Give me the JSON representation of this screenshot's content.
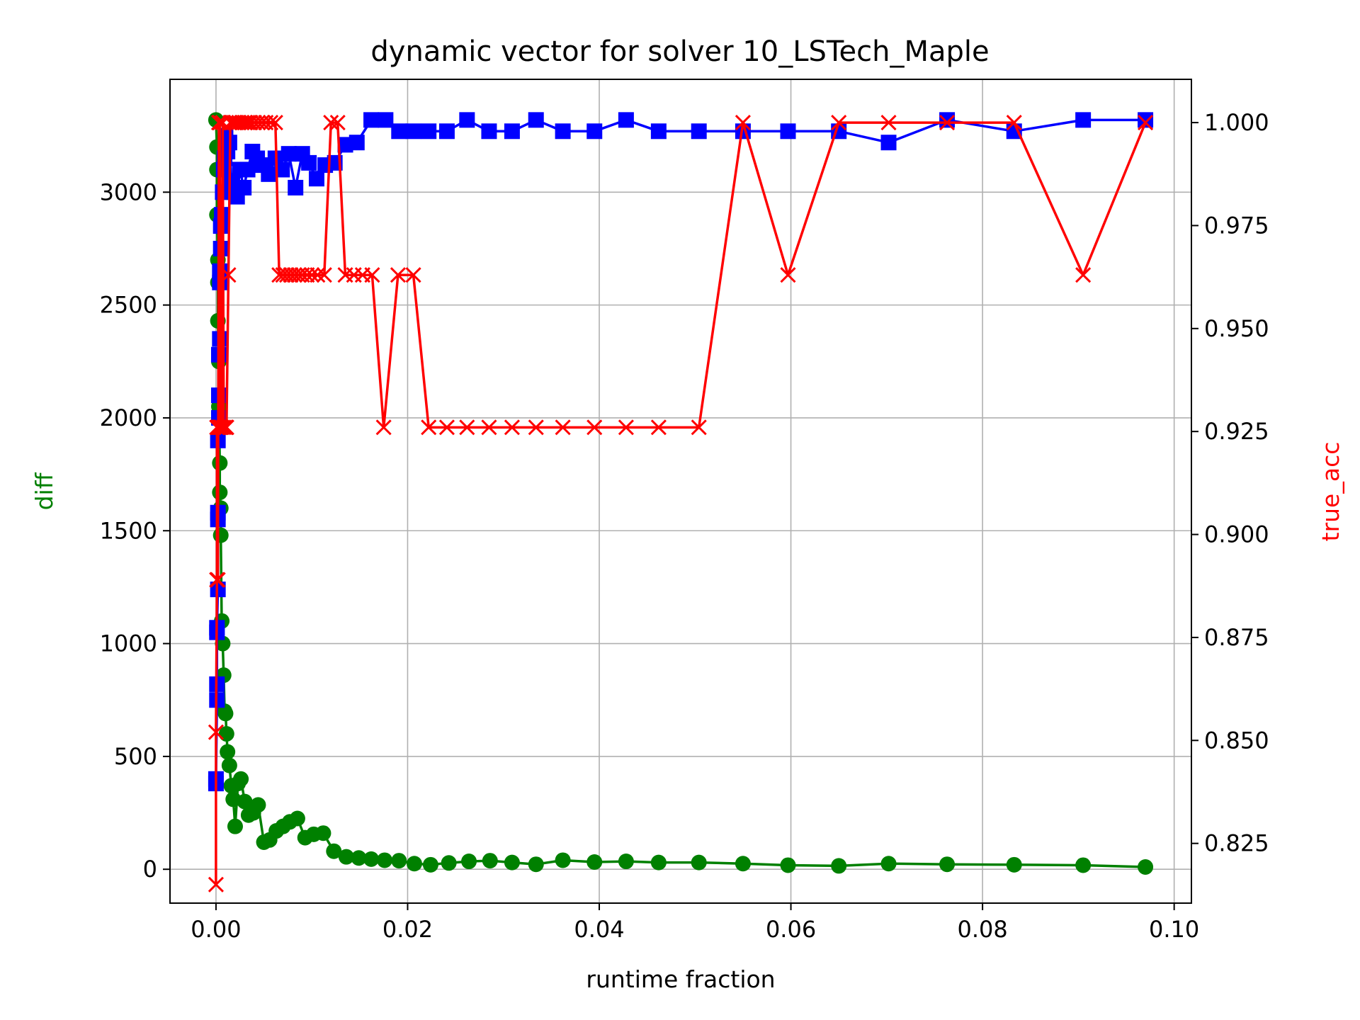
{
  "chart_data": {
    "type": "line",
    "title": "dynamic vector for solver 10_LSTech_Maple",
    "xlabel": "runtime fraction",
    "ylabel_left": "diff",
    "ylabel_right": "true_acc",
    "xlim": [
      -0.0048,
      0.1018
    ],
    "ylim_left": [
      -150,
      3500
    ],
    "ylim_right": [
      0.8105,
      1.0105
    ],
    "xticks": [
      0.0,
      0.02,
      0.04,
      0.06,
      0.08,
      0.1
    ],
    "xtick_labels": [
      "0.00",
      "0.02",
      "0.04",
      "0.06",
      "0.08",
      "0.10"
    ],
    "yticks_left": [
      0,
      500,
      1000,
      1500,
      2000,
      2500,
      3000
    ],
    "ytick_labels_left": [
      "0",
      "500",
      "1000",
      "1500",
      "2000",
      "2500",
      "3000"
    ],
    "yticks_right": [
      0.825,
      0.85,
      0.875,
      0.9,
      0.925,
      0.95,
      0.975,
      1.0
    ],
    "ytick_labels_right": [
      "0.825",
      "0.850",
      "0.875",
      "0.900",
      "0.925",
      "0.950",
      "0.975",
      "1.000"
    ],
    "grid": true,
    "colors": {
      "diff": "#008000",
      "blue_series": "#0000ff",
      "true_acc": "#ff0000"
    },
    "series": [
      {
        "axis": "left",
        "color": "#008000",
        "marker": "circle",
        "x": [
          0.0,
          0.0001,
          0.0001,
          0.0001,
          0.0002,
          0.0002,
          0.0002,
          0.0003,
          0.0003,
          0.0004,
          0.0004,
          0.0005,
          0.0005,
          0.0006,
          0.0007,
          0.0008,
          0.0009,
          0.001,
          0.0011,
          0.0012,
          0.0014,
          0.0016,
          0.0018,
          0.002,
          0.0023,
          0.0026,
          0.003,
          0.0034,
          0.0039,
          0.0044,
          0.005,
          0.0056,
          0.0063,
          0.007,
          0.0077,
          0.0085,
          0.0093,
          0.0102,
          0.0112,
          0.0123,
          0.0136,
          0.0149,
          0.0162,
          0.0176,
          0.0191,
          0.0207,
          0.0224,
          0.0243,
          0.0264,
          0.0286,
          0.0309,
          0.0334,
          0.0362,
          0.0395,
          0.0428,
          0.0462,
          0.0504,
          0.055,
          0.0597,
          0.065,
          0.0702,
          0.0763,
          0.0833,
          0.0905,
          0.097
        ],
        "values": [
          3320,
          3200,
          3100,
          2900,
          2700,
          2600,
          2430,
          2250,
          2050,
          1800,
          1670,
          1600,
          1480,
          1100,
          1000,
          860,
          700,
          690,
          600,
          520,
          460,
          370,
          310,
          190,
          380,
          400,
          300,
          240,
          250,
          285,
          120,
          130,
          170,
          190,
          210,
          225,
          140,
          155,
          160,
          80,
          55,
          50,
          45,
          40,
          38,
          25,
          20,
          28,
          35,
          38,
          30,
          22,
          40,
          32,
          35,
          30,
          30,
          25,
          18,
          15,
          25,
          22,
          20,
          18,
          10
        ]
      },
      {
        "axis": "left",
        "color": "#0000ff",
        "marker": "square",
        "x": [
          0.0,
          0.0,
          0.0001,
          0.0001,
          0.0001,
          0.0001,
          0.0002,
          0.0002,
          0.0002,
          0.0002,
          0.0003,
          0.0003,
          0.0003,
          0.0004,
          0.0004,
          0.0004,
          0.0005,
          0.0005,
          0.0006,
          0.0007,
          0.0008,
          0.0009,
          0.001,
          0.0012,
          0.0014,
          0.0016,
          0.0019,
          0.0022,
          0.0025,
          0.0029,
          0.0033,
          0.0038,
          0.0043,
          0.0049,
          0.0055,
          0.0062,
          0.0069,
          0.0076,
          0.0083,
          0.009,
          0.0097,
          0.0105,
          0.0114,
          0.0124,
          0.0135,
          0.0147,
          0.0162,
          0.0177,
          0.0191,
          0.0206,
          0.0222,
          0.0241,
          0.0262,
          0.0285,
          0.0309,
          0.0334,
          0.0362,
          0.0395,
          0.0428,
          0.0462,
          0.0504,
          0.055,
          0.0597,
          0.065,
          0.0702,
          0.0763,
          0.0833,
          0.0905,
          0.097
        ],
        "values": [
          380,
          400,
          750,
          820,
          1050,
          1070,
          1240,
          1550,
          1580,
          1900,
          2000,
          2100,
          2280,
          2350,
          2600,
          2650,
          2750,
          2850,
          2900,
          3000,
          3100,
          3150,
          3250,
          3180,
          3220,
          3050,
          3000,
          2980,
          3100,
          3020,
          3100,
          3180,
          3150,
          3120,
          3080,
          3150,
          3100,
          3170,
          3020,
          3170,
          3130,
          3060,
          3120,
          3130,
          3210,
          3220,
          3320,
          3320,
          3270,
          3270,
          3270,
          3270,
          3320,
          3270,
          3270,
          3320,
          3270,
          3270,
          3320,
          3270,
          3270,
          3270,
          3270,
          3270,
          3220,
          3320,
          3270,
          3320,
          3320
        ]
      },
      {
        "axis": "right",
        "color": "#ff0000",
        "marker": "x",
        "x": [
          0.0,
          0.0,
          0.0001,
          0.0001,
          0.0001,
          0.0002,
          0.0002,
          0.0003,
          0.0003,
          0.0004,
          0.0004,
          0.0005,
          0.0006,
          0.0007,
          0.0008,
          0.001,
          0.0011,
          0.0013,
          0.0015,
          0.0017,
          0.0019,
          0.0021,
          0.0024,
          0.0027,
          0.003,
          0.0033,
          0.0036,
          0.004,
          0.0044,
          0.0048,
          0.0052,
          0.0057,
          0.0062,
          0.0066,
          0.007,
          0.0074,
          0.0078,
          0.0082,
          0.0086,
          0.009,
          0.0095,
          0.01,
          0.0106,
          0.0113,
          0.012,
          0.0127,
          0.0135,
          0.0144,
          0.0153,
          0.0163,
          0.0175,
          0.019,
          0.0206,
          0.0222,
          0.0241,
          0.0262,
          0.0285,
          0.0309,
          0.0334,
          0.0362,
          0.0395,
          0.0428,
          0.0462,
          0.0504,
          0.055,
          0.0597,
          0.065,
          0.0702,
          0.0763,
          0.0833,
          0.0905,
          0.097
        ],
        "values": [
          0.815,
          0.852,
          0.889,
          0.889,
          0.926,
          0.926,
          0.889,
          1.0,
          0.926,
          0.926,
          1.0,
          0.926,
          0.926,
          1.0,
          0.926,
          0.926,
          0.926,
          0.963,
          1.0,
          1.0,
          1.0,
          1.0,
          1.0,
          1.0,
          1.0,
          1.0,
          1.0,
          1.0,
          1.0,
          1.0,
          1.0,
          1.0,
          1.0,
          0.963,
          0.963,
          0.963,
          0.963,
          0.963,
          0.963,
          0.963,
          0.963,
          0.963,
          0.963,
          0.963,
          1.0,
          1.0,
          0.963,
          0.963,
          0.963,
          0.963,
          0.926,
          0.963,
          0.963,
          0.926,
          0.926,
          0.926,
          0.926,
          0.926,
          0.926,
          0.926,
          0.926,
          0.926,
          0.926,
          0.926,
          1.0,
          0.963,
          1.0,
          1.0,
          1.0,
          1.0,
          0.963,
          1.0
        ]
      }
    ]
  }
}
